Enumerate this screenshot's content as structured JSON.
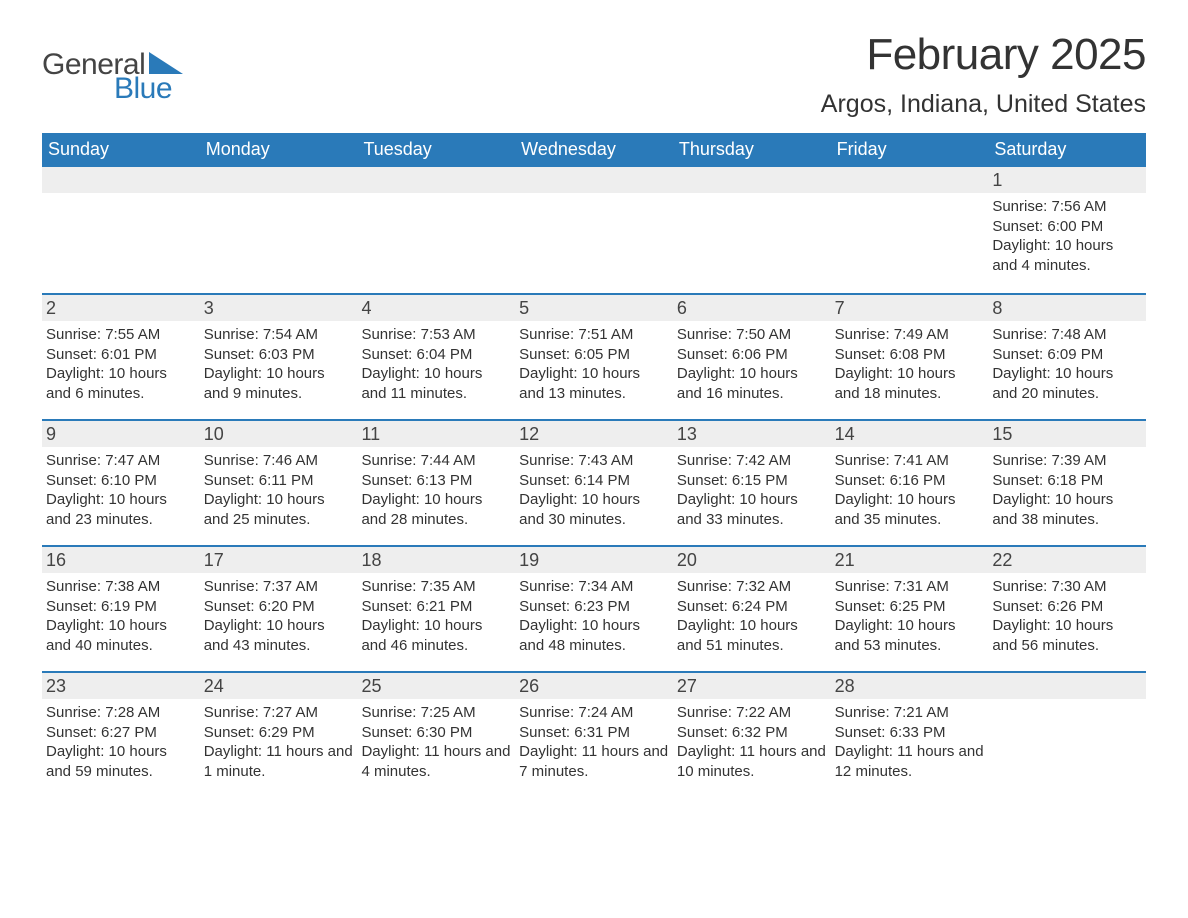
{
  "logo": {
    "general": "General",
    "blue": "Blue",
    "accent_color": "#2a7ab9"
  },
  "title": "February 2025",
  "location": "Argos, Indiana, United States",
  "day_names": [
    "Sunday",
    "Monday",
    "Tuesday",
    "Wednesday",
    "Thursday",
    "Friday",
    "Saturday"
  ],
  "colors": {
    "header_bg": "#2a7ab9",
    "header_text": "#ffffff",
    "daynum_bg": "#eeeeee",
    "text": "#333333",
    "rule": "#2a7ab9",
    "background": "#ffffff"
  },
  "weeks": [
    [
      {
        "day": "",
        "sunrise": "",
        "sunset": "",
        "daylight": ""
      },
      {
        "day": "",
        "sunrise": "",
        "sunset": "",
        "daylight": ""
      },
      {
        "day": "",
        "sunrise": "",
        "sunset": "",
        "daylight": ""
      },
      {
        "day": "",
        "sunrise": "",
        "sunset": "",
        "daylight": ""
      },
      {
        "day": "",
        "sunrise": "",
        "sunset": "",
        "daylight": ""
      },
      {
        "day": "",
        "sunrise": "",
        "sunset": "",
        "daylight": ""
      },
      {
        "day": "1",
        "sunrise": "Sunrise: 7:56 AM",
        "sunset": "Sunset: 6:00 PM",
        "daylight": "Daylight: 10 hours and 4 minutes."
      }
    ],
    [
      {
        "day": "2",
        "sunrise": "Sunrise: 7:55 AM",
        "sunset": "Sunset: 6:01 PM",
        "daylight": "Daylight: 10 hours and 6 minutes."
      },
      {
        "day": "3",
        "sunrise": "Sunrise: 7:54 AM",
        "sunset": "Sunset: 6:03 PM",
        "daylight": "Daylight: 10 hours and 9 minutes."
      },
      {
        "day": "4",
        "sunrise": "Sunrise: 7:53 AM",
        "sunset": "Sunset: 6:04 PM",
        "daylight": "Daylight: 10 hours and 11 minutes."
      },
      {
        "day": "5",
        "sunrise": "Sunrise: 7:51 AM",
        "sunset": "Sunset: 6:05 PM",
        "daylight": "Daylight: 10 hours and 13 minutes."
      },
      {
        "day": "6",
        "sunrise": "Sunrise: 7:50 AM",
        "sunset": "Sunset: 6:06 PM",
        "daylight": "Daylight: 10 hours and 16 minutes."
      },
      {
        "day": "7",
        "sunrise": "Sunrise: 7:49 AM",
        "sunset": "Sunset: 6:08 PM",
        "daylight": "Daylight: 10 hours and 18 minutes."
      },
      {
        "day": "8",
        "sunrise": "Sunrise: 7:48 AM",
        "sunset": "Sunset: 6:09 PM",
        "daylight": "Daylight: 10 hours and 20 minutes."
      }
    ],
    [
      {
        "day": "9",
        "sunrise": "Sunrise: 7:47 AM",
        "sunset": "Sunset: 6:10 PM",
        "daylight": "Daylight: 10 hours and 23 minutes."
      },
      {
        "day": "10",
        "sunrise": "Sunrise: 7:46 AM",
        "sunset": "Sunset: 6:11 PM",
        "daylight": "Daylight: 10 hours and 25 minutes."
      },
      {
        "day": "11",
        "sunrise": "Sunrise: 7:44 AM",
        "sunset": "Sunset: 6:13 PM",
        "daylight": "Daylight: 10 hours and 28 minutes."
      },
      {
        "day": "12",
        "sunrise": "Sunrise: 7:43 AM",
        "sunset": "Sunset: 6:14 PM",
        "daylight": "Daylight: 10 hours and 30 minutes."
      },
      {
        "day": "13",
        "sunrise": "Sunrise: 7:42 AM",
        "sunset": "Sunset: 6:15 PM",
        "daylight": "Daylight: 10 hours and 33 minutes."
      },
      {
        "day": "14",
        "sunrise": "Sunrise: 7:41 AM",
        "sunset": "Sunset: 6:16 PM",
        "daylight": "Daylight: 10 hours and 35 minutes."
      },
      {
        "day": "15",
        "sunrise": "Sunrise: 7:39 AM",
        "sunset": "Sunset: 6:18 PM",
        "daylight": "Daylight: 10 hours and 38 minutes."
      }
    ],
    [
      {
        "day": "16",
        "sunrise": "Sunrise: 7:38 AM",
        "sunset": "Sunset: 6:19 PM",
        "daylight": "Daylight: 10 hours and 40 minutes."
      },
      {
        "day": "17",
        "sunrise": "Sunrise: 7:37 AM",
        "sunset": "Sunset: 6:20 PM",
        "daylight": "Daylight: 10 hours and 43 minutes."
      },
      {
        "day": "18",
        "sunrise": "Sunrise: 7:35 AM",
        "sunset": "Sunset: 6:21 PM",
        "daylight": "Daylight: 10 hours and 46 minutes."
      },
      {
        "day": "19",
        "sunrise": "Sunrise: 7:34 AM",
        "sunset": "Sunset: 6:23 PM",
        "daylight": "Daylight: 10 hours and 48 minutes."
      },
      {
        "day": "20",
        "sunrise": "Sunrise: 7:32 AM",
        "sunset": "Sunset: 6:24 PM",
        "daylight": "Daylight: 10 hours and 51 minutes."
      },
      {
        "day": "21",
        "sunrise": "Sunrise: 7:31 AM",
        "sunset": "Sunset: 6:25 PM",
        "daylight": "Daylight: 10 hours and 53 minutes."
      },
      {
        "day": "22",
        "sunrise": "Sunrise: 7:30 AM",
        "sunset": "Sunset: 6:26 PM",
        "daylight": "Daylight: 10 hours and 56 minutes."
      }
    ],
    [
      {
        "day": "23",
        "sunrise": "Sunrise: 7:28 AM",
        "sunset": "Sunset: 6:27 PM",
        "daylight": "Daylight: 10 hours and 59 minutes."
      },
      {
        "day": "24",
        "sunrise": "Sunrise: 7:27 AM",
        "sunset": "Sunset: 6:29 PM",
        "daylight": "Daylight: 11 hours and 1 minute."
      },
      {
        "day": "25",
        "sunrise": "Sunrise: 7:25 AM",
        "sunset": "Sunset: 6:30 PM",
        "daylight": "Daylight: 11 hours and 4 minutes."
      },
      {
        "day": "26",
        "sunrise": "Sunrise: 7:24 AM",
        "sunset": "Sunset: 6:31 PM",
        "daylight": "Daylight: 11 hours and 7 minutes."
      },
      {
        "day": "27",
        "sunrise": "Sunrise: 7:22 AM",
        "sunset": "Sunset: 6:32 PM",
        "daylight": "Daylight: 11 hours and 10 minutes."
      },
      {
        "day": "28",
        "sunrise": "Sunrise: 7:21 AM",
        "sunset": "Sunset: 6:33 PM",
        "daylight": "Daylight: 11 hours and 12 minutes."
      },
      {
        "day": "",
        "sunrise": "",
        "sunset": "",
        "daylight": ""
      }
    ]
  ]
}
